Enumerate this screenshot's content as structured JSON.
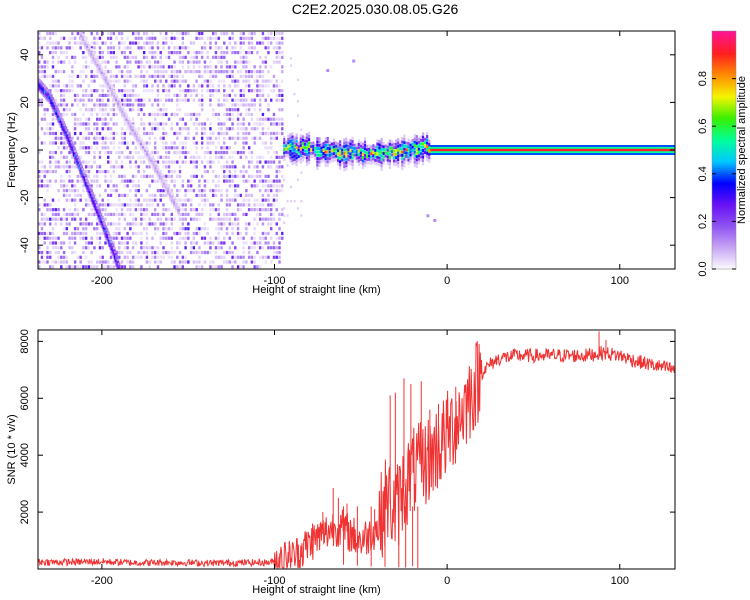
{
  "title": "C2E2.2025.030.08.05.G26",
  "chart_data": [
    {
      "type": "heatmap",
      "xlabel": "Height of straight line (km)",
      "ylabel": "Frequency (Hz)",
      "xlim": [
        -237,
        132
      ],
      "ylim": [
        -50,
        50
      ],
      "x_ticks": [
        -200,
        -100,
        0,
        100
      ],
      "y_ticks": [
        -40,
        -20,
        0,
        20,
        40
      ],
      "colorbar": {
        "label": "Normalized spectral amplitude",
        "range": [
          0,
          1
        ],
        "ticks": [
          "0.0",
          "0.2",
          "0.4",
          "0.6",
          "0.8"
        ],
        "colors": [
          "#ffffff",
          "#c9a8f5",
          "#8f55f2",
          "#6a11f5",
          "#0000ff",
          "#00c8ff",
          "#00ff99",
          "#38f000",
          "#f5f500",
          "#ff8c00",
          "#ff1e1e",
          "#ff1493"
        ]
      },
      "noise_region": {
        "x_range": [
          -237,
          -95
        ],
        "typical_amplitude": 0.1
      },
      "features": [
        {
          "name": "descending trace",
          "points": [
            [
              -237,
              28
            ],
            [
              -230,
              22
            ],
            [
              -220,
              6
            ],
            [
              -210,
              -12
            ],
            [
              -200,
              -30
            ],
            [
              -193,
              -43
            ],
            [
              -190,
              -50
            ]
          ],
          "amplitude": 0.35
        },
        {
          "name": "faint trace",
          "points": [
            [
              -212,
              48
            ],
            [
              -198,
              30
            ],
            [
              -185,
              12
            ],
            [
              -170,
              -6
            ],
            [
              -155,
              -26
            ]
          ],
          "amplitude": 0.1
        },
        {
          "name": "carrier tone",
          "points": [
            [
              -95,
              1
            ],
            [
              -80,
              0
            ],
            [
              -60,
              -1
            ],
            [
              -40,
              -1
            ],
            [
              -20,
              0
            ],
            [
              -10,
              1
            ],
            [
              0,
              0
            ],
            [
              132,
              0
            ]
          ],
          "amplitude": 0.95
        }
      ]
    },
    {
      "type": "line",
      "xlabel": "Height of straight line (km)",
      "ylabel": "SNR (10 * v/v)",
      "xlim": [
        -237,
        132
      ],
      "ylim": [
        0,
        8400
      ],
      "x_ticks": [
        -200,
        -100,
        0,
        100
      ],
      "y_ticks": [
        2000,
        4000,
        6000,
        8000
      ],
      "color": "#f03232",
      "series": [
        {
          "x": [
            -237,
            -220,
            -200,
            -180,
            -160,
            -140,
            -120,
            -105,
            -100,
            -95,
            -90,
            -85,
            -80,
            -75,
            -70,
            -65,
            -60,
            -55,
            -50,
            -45,
            -40,
            -35,
            -30,
            -25,
            -20,
            -15,
            -10,
            -5,
            0,
            5,
            10,
            15,
            20,
            25,
            30,
            40,
            50,
            60,
            70,
            80,
            90,
            100,
            110,
            120,
            132
          ],
          "y": [
            250,
            240,
            260,
            220,
            230,
            210,
            220,
            230,
            250,
            300,
            400,
            600,
            900,
            1100,
            1300,
            1500,
            1400,
            1200,
            1000,
            1200,
            1500,
            2500,
            2000,
            2900,
            3400,
            3600,
            3900,
            4300,
            4700,
            5200,
            5700,
            6300,
            6900,
            7200,
            7400,
            7500,
            7500,
            7500,
            7500,
            7500,
            7600,
            7500,
            7300,
            7150,
            7000
          ]
        }
      ],
      "spikes": [
        {
          "x": -97,
          "y": 550
        },
        {
          "x": -78,
          "y": 1600
        },
        {
          "x": -72,
          "y": 2000
        },
        {
          "x": -66,
          "y": 2850
        },
        {
          "x": -63,
          "y": 2500
        },
        {
          "x": -58,
          "y": 2300
        },
        {
          "x": -42,
          "y": 2100
        },
        {
          "x": -33,
          "y": 6100
        },
        {
          "x": -30,
          "y": 6200
        },
        {
          "x": -25,
          "y": 6700
        },
        {
          "x": -21,
          "y": 6500
        },
        {
          "x": -15,
          "y": 6600
        },
        {
          "x": -10,
          "y": 5600
        },
        {
          "x": -5,
          "y": 5800
        },
        {
          "x": 5,
          "y": 6400
        },
        {
          "x": 88,
          "y": 8350
        },
        {
          "x": 92,
          "y": 8050
        }
      ],
      "dropouts": [
        {
          "x": -60,
          "y": 150
        },
        {
          "x": -52,
          "y": 120
        },
        {
          "x": -44,
          "y": 90
        },
        {
          "x": -36,
          "y": 80
        },
        {
          "x": -28,
          "y": 60
        },
        {
          "x": -24,
          "y": 50
        },
        {
          "x": -20,
          "y": 100
        },
        {
          "x": -17,
          "y": 40
        }
      ]
    }
  ]
}
